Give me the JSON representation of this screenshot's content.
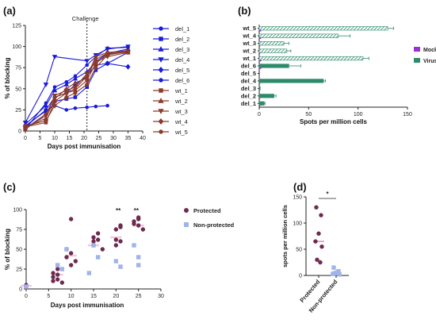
{
  "chart_data": [
    {
      "panel": "(a)",
      "type": "line",
      "xlabel": "Days post immunisation",
      "ylabel": "% of blocking",
      "xlim": [
        0,
        40
      ],
      "ylim": [
        0,
        125
      ],
      "xticks": [
        0,
        5,
        10,
        15,
        20,
        25,
        30,
        35,
        40
      ],
      "yticks": [
        0,
        25,
        50,
        75,
        100,
        125
      ],
      "annotation": {
        "label": "Challenge",
        "x": 21
      },
      "x": [
        0,
        7,
        10,
        14,
        17,
        21,
        24,
        28,
        35
      ],
      "series": [
        {
          "name": "del_1",
          "color": "#1a1adb",
          "marker": "circle",
          "values": [
            6,
            24,
            30,
            25,
            27,
            28,
            29,
            30,
            null
          ]
        },
        {
          "name": "del_2",
          "color": "#1a1adb",
          "marker": "square",
          "values": [
            3,
            20,
            35,
            38,
            40,
            52,
            72,
            80,
            93
          ]
        },
        {
          "name": "del_3",
          "color": "#1a1adb",
          "marker": "triangle-up",
          "values": [
            8,
            30,
            48,
            55,
            62,
            70,
            82,
            92,
            97
          ]
        },
        {
          "name": "del_4",
          "color": "#1a1adb",
          "marker": "triangle-down",
          "values": [
            10,
            55,
            88,
            null,
            null,
            83,
            90,
            97,
            100
          ]
        },
        {
          "name": "del_5",
          "color": "#1a1adb",
          "marker": "diamond",
          "values": [
            5,
            25,
            40,
            45,
            55,
            65,
            78,
            80,
            76
          ]
        },
        {
          "name": "del_6",
          "color": "#1a1adb",
          "marker": "circle",
          "values": [
            2,
            33,
            52,
            58,
            65,
            78,
            88,
            98,
            99
          ]
        },
        {
          "name": "wt_1",
          "color": "#8b3a2b",
          "marker": "square",
          "values": [
            5,
            10,
            35,
            45,
            48,
            60,
            80,
            91,
            95
          ]
        },
        {
          "name": "wt_2",
          "color": "#8b3a2b",
          "marker": "triangle-up",
          "values": [
            4,
            15,
            38,
            50,
            57,
            63,
            85,
            92,
            93
          ]
        },
        {
          "name": "wt_3",
          "color": "#8b3a2b",
          "marker": "triangle-down",
          "values": [
            3,
            18,
            42,
            48,
            52,
            68,
            82,
            88,
            93
          ]
        },
        {
          "name": "wt_4",
          "color": "#8b3a2b",
          "marker": "diamond",
          "values": [
            6,
            12,
            30,
            40,
            45,
            55,
            75,
            90,
            94
          ]
        },
        {
          "name": "wt_5",
          "color": "#8b3a2b",
          "marker": "circle",
          "values": [
            2,
            20,
            40,
            45,
            50,
            65,
            88,
            93,
            95
          ]
        }
      ]
    },
    {
      "panel": "(b)",
      "type": "bar",
      "orientation": "horizontal",
      "xlabel": "Spots per million cells",
      "xlim": [
        0,
        150
      ],
      "xticks": [
        0,
        50,
        100,
        150
      ],
      "categories": [
        "wt_5",
        "wt_4",
        "wt_3",
        "wt_2",
        "wt_1",
        "del_6",
        "del_5",
        "del_4",
        "del_3",
        "del_2",
        "del_1"
      ],
      "series": [
        {
          "name": "Mock",
          "color": "#9b30d9",
          "values": [
            2,
            2,
            1,
            1,
            2,
            2,
            0,
            1,
            0,
            1,
            1
          ]
        },
        {
          "name": "Virus",
          "color": "#2e8b6a",
          "hatched_categories": [
            "wt_5",
            "wt_4",
            "wt_3",
            "wt_2",
            "wt_1"
          ],
          "values": [
            130,
            80,
            25,
            28,
            105,
            30,
            0,
            65,
            1,
            15,
            5
          ],
          "errors": [
            6,
            12,
            5,
            4,
            6,
            12,
            0,
            2,
            0,
            2,
            1
          ]
        }
      ]
    },
    {
      "panel": "(c)",
      "type": "scatter",
      "xlabel": "Days post immunisation",
      "ylabel": "% of blocking",
      "xlim": [
        0,
        30
      ],
      "ylim": [
        0,
        100
      ],
      "xticks": [
        0,
        5,
        10,
        15,
        20,
        25,
        30
      ],
      "yticks": [
        0,
        25,
        50,
        75,
        100
      ],
      "significance": [
        {
          "x": 20.5,
          "label": "**"
        },
        {
          "x": 24.5,
          "label": "**"
        }
      ],
      "series": [
        {
          "name": "Protected",
          "color": "#6e2a4f",
          "marker": "circle",
          "x": [
            0,
            0,
            0,
            0,
            6,
            6,
            6,
            7,
            7,
            7,
            8,
            9,
            9,
            10,
            10,
            10,
            11,
            15,
            15,
            15,
            16,
            16,
            17,
            20,
            20,
            20,
            21,
            21,
            21,
            24,
            24,
            25,
            25,
            25,
            26
          ],
          "y": [
            3,
            5,
            2,
            4,
            10,
            15,
            20,
            12,
            18,
            25,
            8,
            40,
            50,
            45,
            88,
            30,
            35,
            55,
            60,
            65,
            62,
            70,
            50,
            55,
            62,
            75,
            80,
            78,
            60,
            82,
            85,
            88,
            80,
            90,
            75
          ]
        },
        {
          "name": "Non-protected",
          "color": "#9fb4ea",
          "marker": "square",
          "x": [
            0,
            7,
            8,
            9,
            14,
            15,
            16,
            20,
            21,
            24,
            25,
            25
          ],
          "y": [
            3,
            30,
            25,
            50,
            20,
            55,
            40,
            35,
            28,
            55,
            40,
            30
          ]
        }
      ],
      "medians": [
        {
          "x": 0,
          "y": 4
        },
        {
          "x": 7,
          "y": 18
        },
        {
          "x": 10,
          "y": 42
        },
        {
          "x": 15,
          "y": 55
        },
        {
          "x": 20,
          "y": 65
        },
        {
          "x": 25,
          "y": 80
        }
      ]
    },
    {
      "panel": "(d)",
      "type": "scatter",
      "ylabel": "spots per million cells",
      "ylim": [
        0,
        150
      ],
      "yticks": [
        0,
        50,
        100,
        150
      ],
      "categories": [
        "Protected",
        "Non-protected"
      ],
      "significance": [
        {
          "between": [
            "Protected",
            "Non-protected"
          ],
          "label": "*"
        }
      ],
      "series": [
        {
          "name": "Protected",
          "color": "#6e2a4f",
          "marker": "circle",
          "values": [
            130,
            115,
            80,
            65,
            55,
            30,
            25
          ]
        },
        {
          "name": "Non-protected",
          "color": "#9fb4ea",
          "marker": "square",
          "values": [
            15,
            8,
            5,
            3,
            2,
            4,
            6
          ]
        }
      ],
      "medians": [
        65,
        5
      ]
    }
  ]
}
